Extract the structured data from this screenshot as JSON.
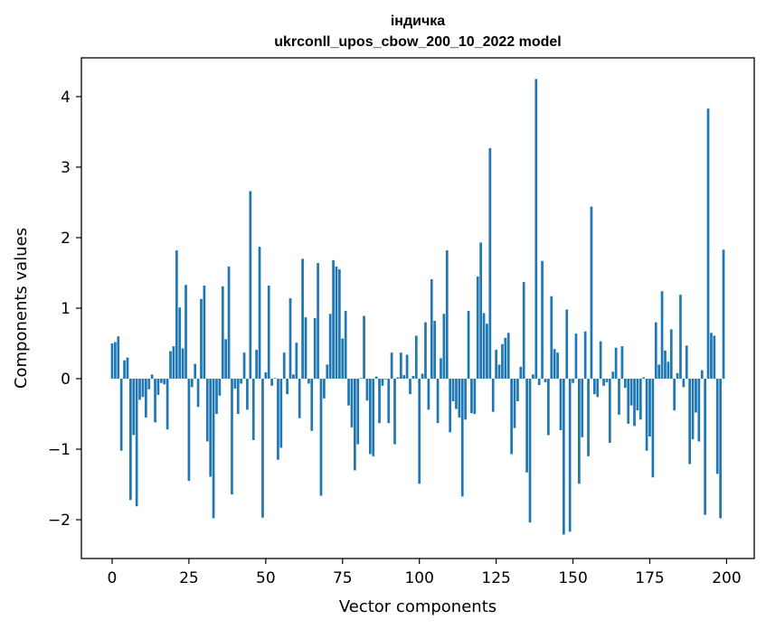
{
  "chart_data": {
    "type": "bar",
    "title": "індичка",
    "subtitle": "ukrconll_upos_cbow_200_10_2022 model",
    "xlabel": "Vector components",
    "ylabel": "Components values",
    "xlim": [
      -10,
      209
    ],
    "ylim": [
      -2.55,
      4.55
    ],
    "xticks": [
      0,
      25,
      50,
      75,
      100,
      125,
      150,
      175,
      200
    ],
    "xtick_labels": [
      "0",
      "25",
      "50",
      "75",
      "100",
      "125",
      "150",
      "175",
      "200"
    ],
    "yticks": [
      -2,
      -1,
      0,
      1,
      2,
      3,
      4
    ],
    "ytick_labels": [
      "−2",
      "−1",
      "0",
      "1",
      "2",
      "3",
      "4"
    ],
    "grid": false,
    "legend": false,
    "bar_color": "#1f77b4",
    "x": [
      0,
      1,
      2,
      3,
      4,
      5,
      6,
      7,
      8,
      9,
      10,
      11,
      12,
      13,
      14,
      15,
      16,
      17,
      18,
      19,
      20,
      21,
      22,
      23,
      24,
      25,
      26,
      27,
      28,
      29,
      30,
      31,
      32,
      33,
      34,
      35,
      36,
      37,
      38,
      39,
      40,
      41,
      42,
      43,
      44,
      45,
      46,
      47,
      48,
      49,
      50,
      51,
      52,
      53,
      54,
      55,
      56,
      57,
      58,
      59,
      60,
      61,
      62,
      63,
      64,
      65,
      66,
      67,
      68,
      69,
      70,
      71,
      72,
      73,
      74,
      75,
      76,
      77,
      78,
      79,
      80,
      81,
      82,
      83,
      84,
      85,
      86,
      87,
      88,
      89,
      90,
      91,
      92,
      93,
      94,
      95,
      96,
      97,
      98,
      99,
      100,
      101,
      102,
      103,
      104,
      105,
      106,
      107,
      108,
      109,
      110,
      111,
      112,
      113,
      114,
      115,
      116,
      117,
      118,
      119,
      120,
      121,
      122,
      123,
      124,
      125,
      126,
      127,
      128,
      129,
      130,
      131,
      132,
      133,
      134,
      135,
      136,
      137,
      138,
      139,
      140,
      141,
      142,
      143,
      144,
      145,
      146,
      147,
      148,
      149,
      150,
      151,
      152,
      153,
      154,
      155,
      156,
      157,
      158,
      159,
      160,
      161,
      162,
      163,
      164,
      165,
      166,
      167,
      168,
      169,
      170,
      171,
      172,
      173,
      174,
      175,
      176,
      177,
      178,
      179,
      180,
      181,
      182,
      183,
      184,
      185,
      186,
      187,
      188,
      189,
      190,
      191,
      192,
      193,
      194,
      195,
      196,
      197,
      198,
      199
    ],
    "values": [
      0.5,
      0.52,
      0.6,
      -1.02,
      0.26,
      0.3,
      -1.72,
      -0.8,
      -1.81,
      -0.3,
      -0.26,
      -0.55,
      -0.15,
      0.06,
      -0.62,
      -0.23,
      -0.06,
      -0.08,
      -0.72,
      0.39,
      0.46,
      1.82,
      1.01,
      0.43,
      1.33,
      -1.45,
      -0.12,
      0.21,
      -0.4,
      1.13,
      1.32,
      -0.89,
      -1.39,
      -1.98,
      -0.5,
      -0.24,
      1.31,
      0.56,
      1.59,
      -1.64,
      -0.14,
      -0.5,
      -0.07,
      0.37,
      -0.44,
      2.66,
      -0.87,
      0.41,
      1.87,
      -1.97,
      0.09,
      1.32,
      -0.1,
      0.01,
      -1.15,
      -0.98,
      0.37,
      -0.22,
      1.14,
      0.06,
      0.51,
      -0.56,
      1.7,
      0.87,
      -0.07,
      -0.74,
      0.86,
      1.64,
      -1.66,
      -0.28,
      0.2,
      0.92,
      1.68,
      1.59,
      1.55,
      0.57,
      0.96,
      -0.38,
      -0.69,
      -1.3,
      -0.93,
      0.01,
      0.89,
      -0.31,
      -1.07,
      -1.1,
      0.03,
      -0.63,
      -0.1,
      -0.01,
      -0.63,
      0.37,
      -0.93,
      0.02,
      0.37,
      0.05,
      0.34,
      -0.22,
      0.04,
      0.61,
      -1.49,
      0.07,
      0.8,
      -0.44,
      1.41,
      0.82,
      -0.63,
      0.29,
      0.92,
      1.82,
      -0.76,
      -0.32,
      -0.43,
      -0.55,
      -1.67,
      -0.58,
      0.96,
      -0.49,
      -0.5,
      1.45,
      1.93,
      0.93,
      0.78,
      3.27,
      -0.47,
      0.41,
      0.2,
      0.49,
      0.58,
      0.65,
      -1.07,
      -0.7,
      -0.32,
      0.17,
      1.37,
      -1.33,
      -2.04,
      0.06,
      4.25,
      -0.09,
      1.67,
      -0.05,
      -0.8,
      1.17,
      0.42,
      0.37,
      -0.73,
      -2.21,
      0.98,
      -2.17,
      -0.06,
      0.64,
      -1.49,
      -0.83,
      0.67,
      -1.1,
      2.44,
      -0.22,
      -0.26,
      0.53,
      -0.1,
      -0.05,
      -0.91,
      0.1,
      0.44,
      -0.51,
      0.46,
      -0.13,
      -0.64,
      -0.38,
      -0.67,
      -0.45,
      -0.58,
      0.02,
      -1.02,
      -0.82,
      -1.4,
      0.8,
      0.2,
      1.24,
      0.4,
      0.24,
      0.7,
      -0.45,
      0.08,
      1.19,
      -0.12,
      0.47,
      -1.21,
      -0.86,
      -0.48,
      -0.89,
      0.12,
      -1.93,
      3.83,
      0.65,
      0.61,
      -1.35,
      -1.98,
      1.83
    ]
  }
}
